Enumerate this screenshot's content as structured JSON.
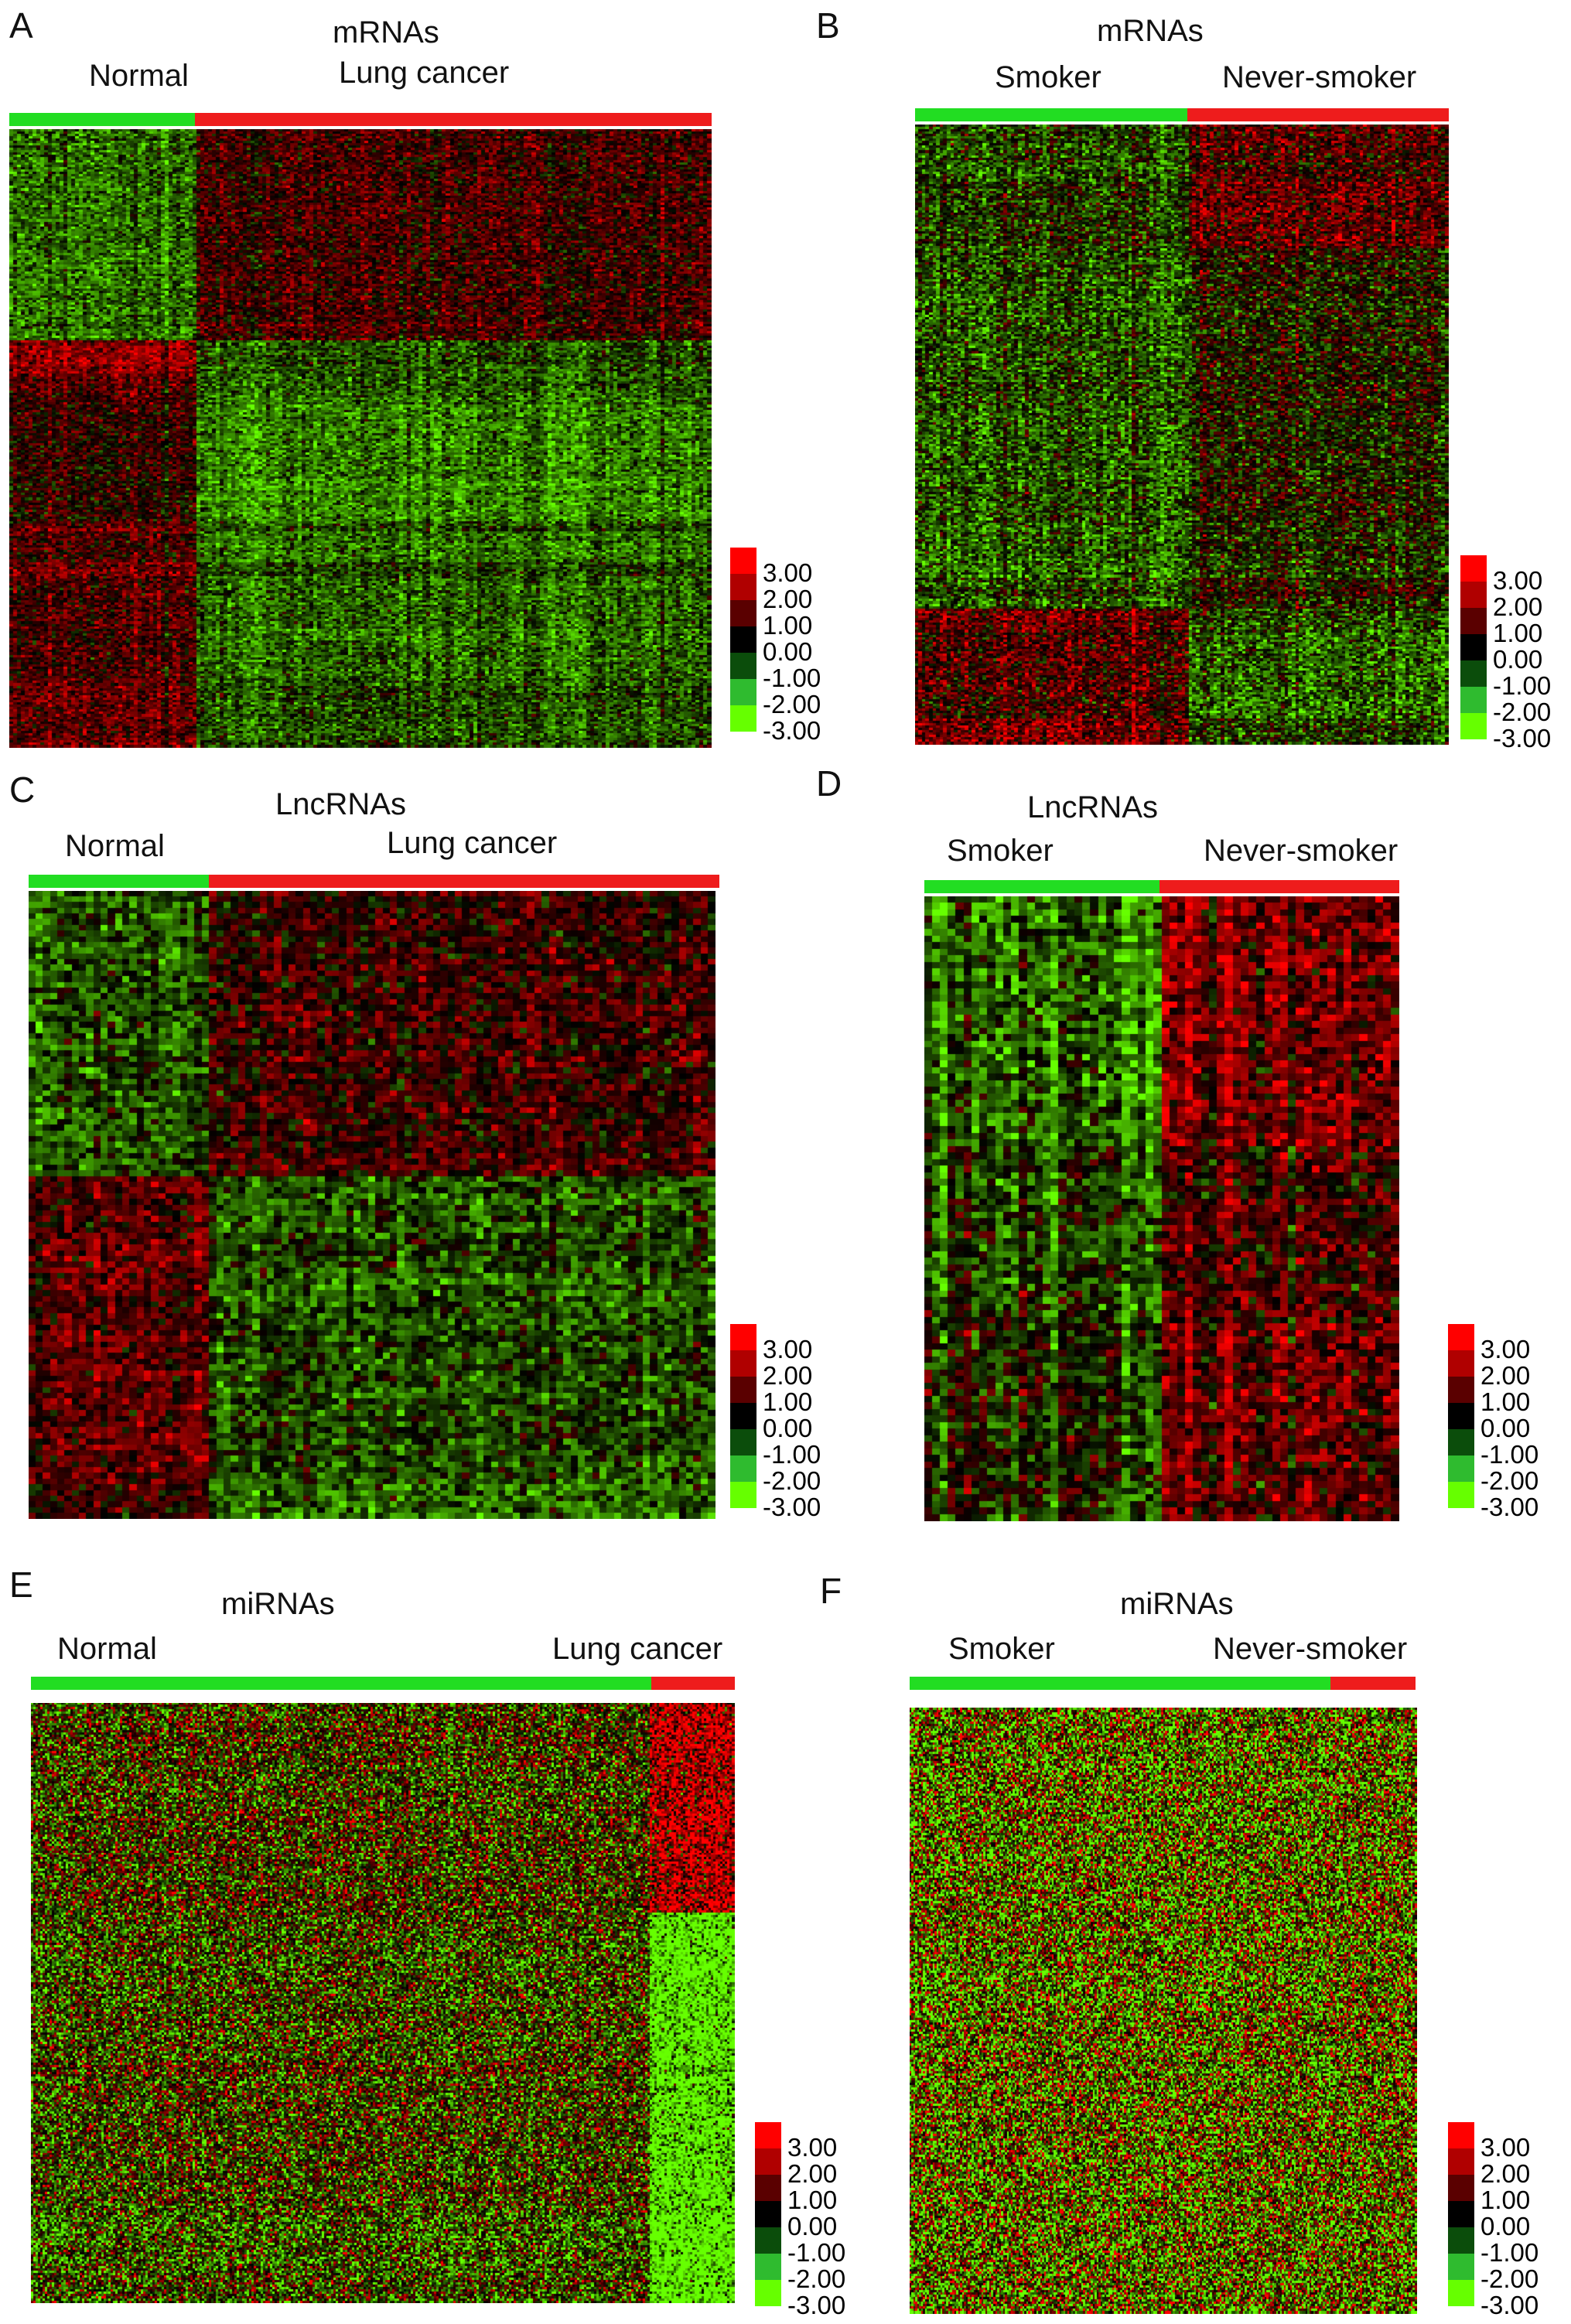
{
  "palette": {
    "normal_group": "#22dd22",
    "cancer_group": "#ee1c1c",
    "low": "#66ff00",
    "mid": "#000000",
    "high": "#ff0000"
  },
  "chart_data": [
    {
      "type": "heatmap",
      "panel": "A",
      "title": "mRNAs",
      "groups": [
        {
          "label": "Normal",
          "fraction": 0.26
        },
        {
          "label": "Lung cancer",
          "fraction": 0.74
        }
      ],
      "colorbar": {
        "ticks": [
          "3.00",
          "2.00",
          "1.00",
          "0.00",
          "-1.00",
          "-2.00",
          "-3.00"
        ],
        "range": [
          -3,
          3
        ]
      }
    },
    {
      "type": "heatmap",
      "panel": "B",
      "title": "mRNAs",
      "groups": [
        {
          "label": "Smoker",
          "fraction": 0.51
        },
        {
          "label": "Never-smoker",
          "fraction": 0.49
        }
      ],
      "colorbar": {
        "ticks": [
          "3.00",
          "2.00",
          "1.00",
          "0.00",
          "-1.00",
          "-2.00",
          "-3.00"
        ],
        "range": [
          -3,
          3
        ]
      }
    },
    {
      "type": "heatmap",
      "panel": "C",
      "title": "LncRNAs",
      "groups": [
        {
          "label": "Normal",
          "fraction": 0.26
        },
        {
          "label": "Lung cancer",
          "fraction": 0.74
        }
      ],
      "colorbar": {
        "ticks": [
          "3.00",
          "2.00",
          "1.00",
          "0.00",
          "-1.00",
          "-2.00",
          "-3.00"
        ],
        "range": [
          -3,
          3
        ]
      }
    },
    {
      "type": "heatmap",
      "panel": "D",
      "title": "LncRNAs",
      "groups": [
        {
          "label": "Smoker",
          "fraction": 0.5
        },
        {
          "label": "Never-smoker",
          "fraction": 0.5
        }
      ],
      "colorbar": {
        "ticks": [
          "3.00",
          "2.00",
          "1.00",
          "0.00",
          "-1.00",
          "-2.00",
          "-3.00"
        ],
        "range": [
          -3,
          3
        ]
      }
    },
    {
      "type": "heatmap",
      "panel": "E",
      "title": "miRNAs",
      "groups": [
        {
          "label": "Normal",
          "fraction": 0.88
        },
        {
          "label": "Lung cancer",
          "fraction": 0.12
        }
      ],
      "colorbar": {
        "ticks": [
          "3.00",
          "2.00",
          "1.00",
          "0.00",
          "-1.00",
          "-2.00",
          "-3.00"
        ],
        "range": [
          -3,
          3
        ]
      }
    },
    {
      "type": "heatmap",
      "panel": "F",
      "title": "miRNAs",
      "groups": [
        {
          "label": "Smoker",
          "fraction": 0.83
        },
        {
          "label": "Never-smoker",
          "fraction": 0.17
        }
      ],
      "colorbar": {
        "ticks": [
          "3.00",
          "2.00",
          "1.00",
          "0.00",
          "-1.00",
          "-2.00",
          "-3.00"
        ],
        "range": [
          -3,
          3
        ]
      }
    }
  ]
}
